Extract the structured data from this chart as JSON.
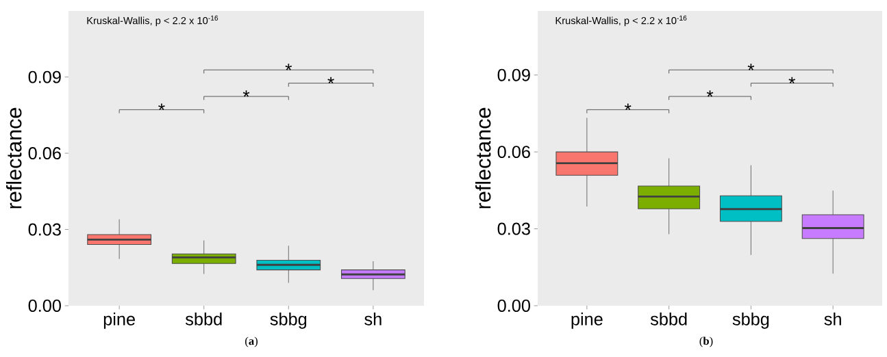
{
  "chart_data": [
    {
      "type": "box",
      "ylabel": "reflectance",
      "categories": [
        "pine",
        "sbbd",
        "sbbg",
        "sh"
      ],
      "colors": [
        "#f8766d",
        "#7cae00",
        "#00bfc4",
        "#c77cff"
      ],
      "boxes": [
        {
          "low": 0.0184,
          "q1": 0.0241,
          "median": 0.026,
          "q3": 0.028,
          "high": 0.034
        },
        {
          "low": 0.0125,
          "q1": 0.0166,
          "median": 0.019,
          "q3": 0.0204,
          "high": 0.0257
        },
        {
          "low": 0.009,
          "q1": 0.0141,
          "median": 0.0161,
          "q3": 0.0179,
          "high": 0.0236
        },
        {
          "low": 0.0061,
          "q1": 0.0107,
          "median": 0.0123,
          "q3": 0.0141,
          "high": 0.0175
        }
      ],
      "ylim": [
        0,
        0.116
      ],
      "yticks": [
        {
          "value": 0,
          "label": "0.00"
        },
        {
          "value": 0.03,
          "label": "0.03"
        },
        {
          "value": 0.06,
          "label": "0.06"
        },
        {
          "value": 0.09,
          "label": "0.09"
        }
      ],
      "grid": false,
      "annotations": [
        "Kruskal-Wallis, p < 2.2 x 10$^{-16}$",
        "*",
        "*",
        "*",
        "*",
        "(**a**)"
      ]
    },
    {
      "type": "box",
      "ylabel": "reflectance",
      "categories": [
        "pine",
        "sbbd",
        "sbbg",
        "sh"
      ],
      "colors": [
        "#f8766d",
        "#7cae00",
        "#00bfc4",
        "#c77cff"
      ],
      "boxes": [
        {
          "low": 0.0387,
          "q1": 0.0509,
          "median": 0.0556,
          "q3": 0.06,
          "high": 0.0733
        },
        {
          "low": 0.0279,
          "q1": 0.0378,
          "median": 0.0426,
          "q3": 0.0467,
          "high": 0.0575
        },
        {
          "low": 0.0198,
          "q1": 0.0329,
          "median": 0.0377,
          "q3": 0.0429,
          "high": 0.0548
        },
        {
          "low": 0.0125,
          "q1": 0.0262,
          "median": 0.0303,
          "q3": 0.0355,
          "high": 0.0449
        }
      ],
      "ylim": [
        0,
        0.115
      ],
      "yticks": [
        {
          "value": 0,
          "label": "0.00"
        },
        {
          "value": 0.03,
          "label": "0.03"
        },
        {
          "value": 0.06,
          "label": "0.06"
        },
        {
          "value": 0.09,
          "label": "0.09"
        }
      ],
      "grid": false,
      "annotations": [
        "Kruskal-Wallis, p < 2.2 x 10$^{-16}$",
        "*",
        "*",
        "*",
        "*",
        "(**b**)"
      ]
    }
  ]
}
